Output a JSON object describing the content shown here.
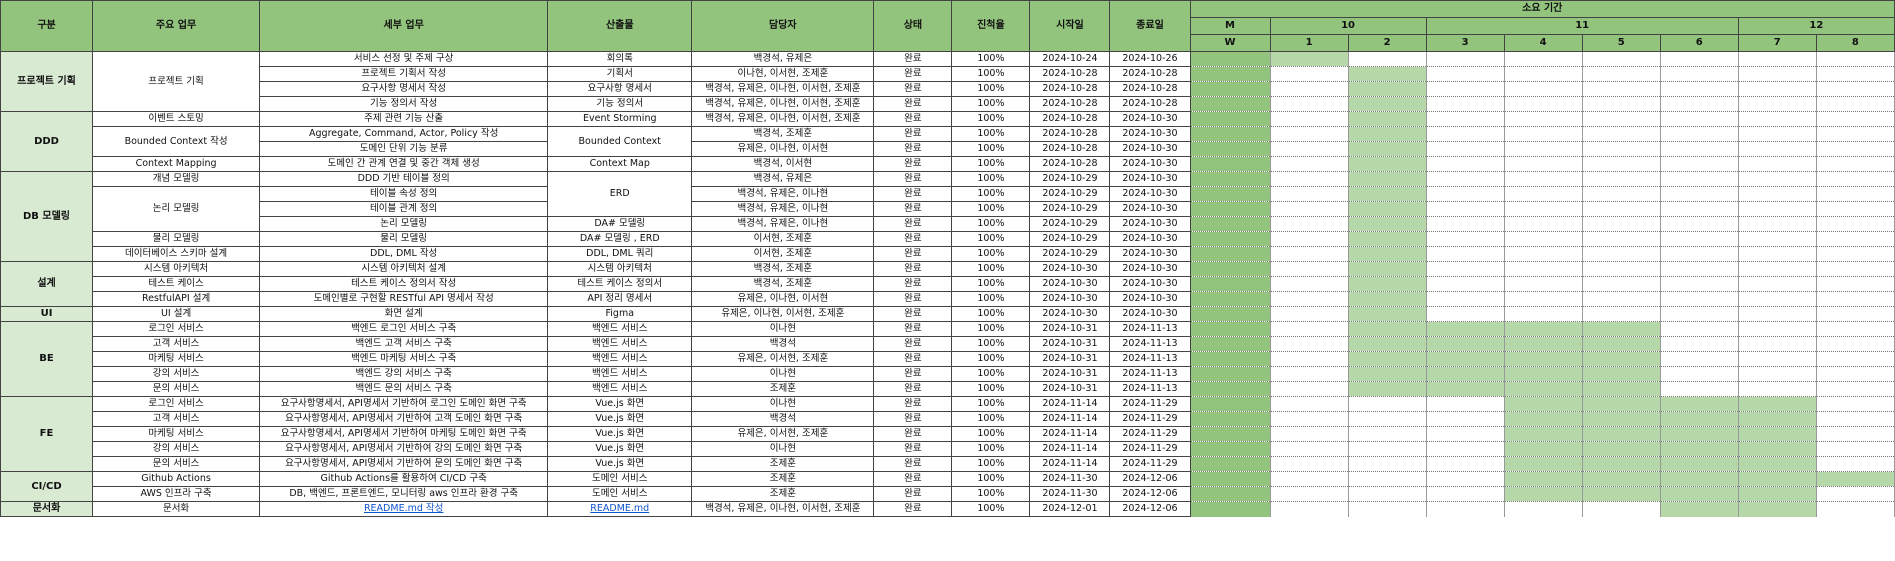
{
  "headers": {
    "category": "구분",
    "main_task": "주요 업무",
    "detail_task": "세부 업무",
    "deliverable": "산출물",
    "assignee": "담당자",
    "status": "상태",
    "progress": "진척율",
    "start": "시작일",
    "end": "종료일",
    "duration": "소요 기간",
    "month_m": "M",
    "week_w": "W"
  },
  "months": [
    {
      "label": "10",
      "weeks": 2
    },
    {
      "label": "11",
      "weeks": 4
    },
    {
      "label": "12",
      "weeks": 2
    }
  ],
  "weeks": [
    "1",
    "2",
    "3",
    "4",
    "5",
    "6",
    "7",
    "8"
  ],
  "colors": {
    "header": "#93c47d",
    "group": "#d9ead3",
    "bar": "#b6d7a8",
    "link": "#1155cc"
  },
  "rows": [
    {
      "cat": "프로젝트 기획",
      "catSpan": 4,
      "main": "프로젝트 기획",
      "mainSpan": 4,
      "detail": "서비스 선정 및 주제 구상",
      "deliv": "회의록",
      "delivSpan": 1,
      "assignee": "백경석, 유제은",
      "status": "완료",
      "progress": "100%",
      "start": "2024-10-24",
      "end": "2024-10-26",
      "weeks": [
        1
      ]
    },
    {
      "detail": "프로젝트 기획서 작성",
      "deliv": "기획서",
      "delivSpan": 1,
      "assignee": "이나현, 이서현, 조제훈",
      "status": "완료",
      "progress": "100%",
      "start": "2024-10-28",
      "end": "2024-10-28",
      "weeks": [
        2
      ]
    },
    {
      "detail": "요구사항 명세서 작성",
      "deliv": "요구사항 명세서",
      "delivSpan": 1,
      "assignee": "백경석, 유제은, 이나현, 이서현, 조제훈",
      "status": "완료",
      "progress": "100%",
      "start": "2024-10-28",
      "end": "2024-10-28",
      "weeks": [
        2
      ]
    },
    {
      "detail": "기능 정의서 작성",
      "deliv": "기능 정의서",
      "delivSpan": 1,
      "assignee": "백경석, 유제은, 이나현, 이서현, 조제훈",
      "status": "완료",
      "progress": "100%",
      "start": "2024-10-28",
      "end": "2024-10-28",
      "weeks": [
        2
      ]
    },
    {
      "cat": "DDD",
      "catSpan": 4,
      "main": "이벤트 스토밍",
      "mainSpan": 1,
      "detail": "주제 관련 기능 산출",
      "deliv": "Event Storming",
      "delivSpan": 1,
      "assignee": "백경석, 유제은, 이나현, 이서현, 조제훈",
      "status": "완료",
      "progress": "100%",
      "start": "2024-10-28",
      "end": "2024-10-30",
      "weeks": [
        2
      ]
    },
    {
      "main": "Bounded Context 작성",
      "mainSpan": 2,
      "detail": "Aggregate, Command, Actor, Policy 작성",
      "deliv": "Bounded Context",
      "delivSpan": 2,
      "assignee": "백경석, 조제훈",
      "status": "완료",
      "progress": "100%",
      "start": "2024-10-28",
      "end": "2024-10-30",
      "weeks": [
        2
      ]
    },
    {
      "detail": "도메인 단위 기능 분류",
      "assignee": "유제은, 이나현, 이서현",
      "status": "완료",
      "progress": "100%",
      "start": "2024-10-28",
      "end": "2024-10-30",
      "weeks": [
        2
      ]
    },
    {
      "main": "Context Mapping",
      "mainSpan": 1,
      "detail": "도메인 간 관계 연결 및 중간 객체 생성",
      "deliv": "Context Map",
      "delivSpan": 1,
      "assignee": "백경석, 이서현",
      "status": "완료",
      "progress": "100%",
      "start": "2024-10-28",
      "end": "2024-10-30",
      "weeks": [
        2
      ]
    },
    {
      "cat": "DB 모델링",
      "catSpan": 6,
      "main": "개념 모델링",
      "mainSpan": 1,
      "detail": "DDD 기반 테이블 정의",
      "deliv": "ERD",
      "delivSpan": 3,
      "assignee": "백경석, 유제은",
      "status": "완료",
      "progress": "100%",
      "start": "2024-10-29",
      "end": "2024-10-30",
      "weeks": [
        2
      ]
    },
    {
      "main": "논리 모델링",
      "mainSpan": 3,
      "detail": "테이블 속성 정의",
      "assignee": "백경석, 유제은, 이나현",
      "status": "완료",
      "progress": "100%",
      "start": "2024-10-29",
      "end": "2024-10-30",
      "weeks": [
        2
      ]
    },
    {
      "detail": "테이블 관계 정의",
      "assignee": "백경석, 유제은, 이나현",
      "status": "완료",
      "progress": "100%",
      "start": "2024-10-29",
      "end": "2024-10-30",
      "weeks": [
        2
      ]
    },
    {
      "detail": "논리 모델링",
      "deliv": "DA# 모델링",
      "delivSpan": 1,
      "assignee": "백경석, 유제은, 이나현",
      "status": "완료",
      "progress": "100%",
      "start": "2024-10-29",
      "end": "2024-10-30",
      "weeks": [
        2
      ]
    },
    {
      "main": "물리 모델링",
      "mainSpan": 1,
      "detail": "물리 모델링",
      "deliv": "DA# 모델링 , ERD",
      "delivSpan": 1,
      "assignee": "이서현, 조제훈",
      "status": "완료",
      "progress": "100%",
      "start": "2024-10-29",
      "end": "2024-10-30",
      "weeks": [
        2
      ]
    },
    {
      "main": "데이터베이스 스키마 설계",
      "mainSpan": 1,
      "detail": "DDL, DML 작성",
      "deliv": "DDL, DML 쿼리",
      "delivSpan": 1,
      "assignee": "이서현, 조제훈",
      "status": "완료",
      "progress": "100%",
      "start": "2024-10-29",
      "end": "2024-10-30",
      "weeks": [
        2
      ]
    },
    {
      "cat": "설계",
      "catSpan": 3,
      "main": "시스템 아키텍처",
      "mainSpan": 1,
      "detail": "시스템 아키텍처 설계",
      "deliv": "시스템 아키텍처",
      "delivSpan": 1,
      "assignee": "백경석, 조제훈",
      "status": "완료",
      "progress": "100%",
      "start": "2024-10-30",
      "end": "2024-10-30",
      "weeks": [
        2
      ]
    },
    {
      "main": "테스트 케이스",
      "mainSpan": 1,
      "detail": "테스트 케이스 정의서 작성",
      "deliv": "테스트 케이스 정의서",
      "delivSpan": 1,
      "assignee": "백경석, 조제훈",
      "status": "완료",
      "progress": "100%",
      "start": "2024-10-30",
      "end": "2024-10-30",
      "weeks": [
        2
      ]
    },
    {
      "main": "RestfulAPI 설계",
      "mainSpan": 1,
      "detail": "도메인별로 구현할 RESTful API 명세서 작성",
      "deliv": "API 정리 명세서",
      "delivSpan": 1,
      "assignee": "유제은, 이나현, 이서현",
      "status": "완료",
      "progress": "100%",
      "start": "2024-10-30",
      "end": "2024-10-30",
      "weeks": [
        2
      ]
    },
    {
      "cat": "UI",
      "catSpan": 1,
      "main": "UI 설계",
      "mainSpan": 1,
      "detail": "화면 설계",
      "deliv": "Figma",
      "delivSpan": 1,
      "assignee": "유제은, 이나현, 이서현, 조제훈",
      "status": "완료",
      "progress": "100%",
      "start": "2024-10-30",
      "end": "2024-10-30",
      "weeks": [
        2
      ]
    },
    {
      "cat": "BE",
      "catSpan": 5,
      "main": "로그인 서비스",
      "mainSpan": 1,
      "detail": "백엔드 로그인 서비스 구축",
      "deliv": "백엔드 서비스",
      "delivSpan": 1,
      "assignee": "이나현",
      "status": "완료",
      "progress": "100%",
      "start": "2024-10-31",
      "end": "2024-11-13",
      "weeks": [
        2,
        3,
        4,
        5
      ]
    },
    {
      "main": "고객 서비스",
      "mainSpan": 1,
      "detail": "백엔드 고객 서비스 구축",
      "deliv": "백엔드 서비스",
      "delivSpan": 1,
      "assignee": "백경석",
      "status": "완료",
      "progress": "100%",
      "start": "2024-10-31",
      "end": "2024-11-13",
      "weeks": [
        2,
        3,
        4,
        5
      ]
    },
    {
      "main": "마케팅 서비스",
      "mainSpan": 1,
      "detail": "백엔드 마케팅 서비스 구축",
      "deliv": "백엔드 서비스",
      "delivSpan": 1,
      "assignee": "유제은, 이서현, 조제훈",
      "status": "완료",
      "progress": "100%",
      "start": "2024-10-31",
      "end": "2024-11-13",
      "weeks": [
        2,
        3,
        4,
        5
      ]
    },
    {
      "main": "강의 서비스",
      "mainSpan": 1,
      "detail": "백엔드 강의 서비스 구축",
      "deliv": "백엔드 서비스",
      "delivSpan": 1,
      "assignee": "이나현",
      "status": "완료",
      "progress": "100%",
      "start": "2024-10-31",
      "end": "2024-11-13",
      "weeks": [
        2,
        3,
        4,
        5
      ]
    },
    {
      "main": "문의 서비스",
      "mainSpan": 1,
      "detail": "백엔드 문의 서비스 구축",
      "deliv": "백엔드 서비스",
      "delivSpan": 1,
      "assignee": "조제훈",
      "status": "완료",
      "progress": "100%",
      "start": "2024-10-31",
      "end": "2024-11-13",
      "weeks": [
        2,
        3,
        4,
        5
      ]
    },
    {
      "cat": "FE",
      "catSpan": 5,
      "main": "로그인 서비스",
      "mainSpan": 1,
      "detail": "요구사항명세서, API명세서 기반하여 로그인 도메인 화면 구축",
      "deliv": "Vue.js 화면",
      "delivSpan": 1,
      "assignee": "이나현",
      "status": "완료",
      "progress": "100%",
      "start": "2024-11-14",
      "end": "2024-11-29",
      "weeks": [
        4,
        5,
        6,
        7
      ]
    },
    {
      "main": "고객 서비스",
      "mainSpan": 1,
      "detail": "요구사항명세서, API명세서 기반하여 고객 도메인 화면 구축",
      "deliv": "Vue.js 화면",
      "delivSpan": 1,
      "assignee": "백경석",
      "status": "완료",
      "progress": "100%",
      "start": "2024-11-14",
      "end": "2024-11-29",
      "weeks": [
        4,
        5,
        6,
        7
      ]
    },
    {
      "main": "마케팅 서비스",
      "mainSpan": 1,
      "detail": "요구사항명세서, API명세서 기반하여 마케팅 도메인 화면 구축",
      "deliv": "Vue.js 화면",
      "delivSpan": 1,
      "assignee": "유제은, 이서현, 조제훈",
      "status": "완료",
      "progress": "100%",
      "start": "2024-11-14",
      "end": "2024-11-29",
      "weeks": [
        4,
        5,
        6,
        7
      ]
    },
    {
      "main": "강의 서비스",
      "mainSpan": 1,
      "detail": "요구사항명세서, API명세서 기반하여 강의 도메인 화면 구축",
      "deliv": "Vue.js 화면",
      "delivSpan": 1,
      "assignee": "이나현",
      "status": "완료",
      "progress": "100%",
      "start": "2024-11-14",
      "end": "2024-11-29",
      "weeks": [
        4,
        5,
        6,
        7
      ]
    },
    {
      "main": "문의 서비스",
      "mainSpan": 1,
      "detail": "요구사항명세서, API명세서 기반하여 문의 도메인 화면 구축",
      "deliv": "Vue.js 화면",
      "delivSpan": 1,
      "assignee": "조제훈",
      "status": "완료",
      "progress": "100%",
      "start": "2024-11-14",
      "end": "2024-11-29",
      "weeks": [
        4,
        5,
        6,
        7
      ]
    },
    {
      "cat": "CI/CD",
      "catSpan": 2,
      "main": "Github Actions",
      "mainSpan": 1,
      "detail": "Github Actions를 활용하여 CI/CD 구축",
      "deliv": "도메인 서비스",
      "delivSpan": 1,
      "assignee": "조제훈",
      "status": "완료",
      "progress": "100%",
      "start": "2024-11-30",
      "end": "2024-12-06",
      "weeks": [
        4,
        5,
        6,
        7,
        8
      ]
    },
    {
      "main": "AWS 인프라 구축",
      "mainSpan": 1,
      "detail": "DB, 백엔드, 프론트엔드, 모니터링 aws 인프라 환경 구축",
      "deliv": "도메인 서비스",
      "delivSpan": 1,
      "assignee": "조제훈",
      "status": "완료",
      "progress": "100%",
      "start": "2024-11-30",
      "end": "2024-12-06",
      "weeks": [
        4,
        5,
        6,
        7
      ]
    },
    {
      "cat": "문서화",
      "catSpan": 1,
      "main": "문서화",
      "mainSpan": 1,
      "detail": "README.md 작성",
      "detailLink": true,
      "deliv": "README.md",
      "delivLink": true,
      "delivSpan": 1,
      "assignee": "백경석, 유제은, 이나현, 이서현, 조제훈",
      "status": "완료",
      "progress": "100%",
      "start": "2024-12-01",
      "end": "2024-12-06",
      "weeks": [
        6,
        7
      ]
    }
  ]
}
